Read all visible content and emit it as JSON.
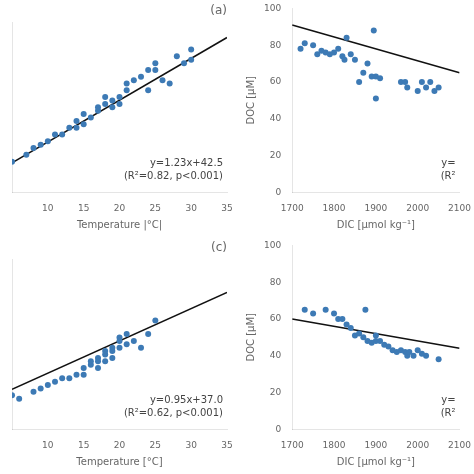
{
  "chart_data": [
    {
      "type": "scatter",
      "title": "(a)",
      "x_label": "Temperature |°C|",
      "xlim": [
        5,
        35
      ],
      "ylim": [
        40,
        90
      ],
      "xticks": [
        10,
        15,
        20,
        25,
        30,
        35
      ],
      "tick_labels": "x",
      "grid": false,
      "series": [
        {
          "type": "scatter",
          "color": "#3d7ab5",
          "x": [
            5,
            7,
            8,
            9,
            10,
            11,
            12,
            13,
            14,
            14,
            15,
            15,
            16,
            17,
            17,
            18,
            18,
            19,
            19,
            20,
            20,
            21,
            21,
            22,
            23,
            24,
            24,
            25,
            25,
            26,
            27,
            28,
            29,
            30,
            30
          ],
          "values": [
            49,
            51,
            53,
            54,
            55,
            57,
            57,
            59,
            59,
            61,
            60,
            63,
            62,
            64,
            65,
            66,
            68,
            65,
            67,
            68,
            66,
            70,
            72,
            73,
            74,
            70,
            76,
            78,
            76,
            73,
            72,
            80,
            78,
            82,
            79
          ]
        },
        {
          "type": "line",
          "color": "#111111",
          "x": [
            5,
            35
          ],
          "values": [
            48.65,
            85.55
          ]
        }
      ],
      "annotations": [
        "y=1.23x+42.5",
        "(R²=0.82, p<0.001)"
      ]
    },
    {
      "type": "scatter",
      "x_label": "DIC [μmol kg⁻¹]",
      "y_label": "DOC [μM]",
      "xlim": [
        1700,
        2100
      ],
      "ylim": [
        0,
        100
      ],
      "xticks": [
        1700,
        1800,
        1900,
        2000,
        2100
      ],
      "yticks": [
        0,
        20,
        40,
        60,
        80,
        100
      ],
      "grid": false,
      "series": [
        {
          "type": "scatter",
          "color": "#3d7ab5",
          "x": [
            1720,
            1730,
            1750,
            1760,
            1770,
            1780,
            1790,
            1800,
            1810,
            1820,
            1825,
            1830,
            1840,
            1850,
            1860,
            1870,
            1880,
            1890,
            1895,
            1900,
            1900,
            1910,
            1960,
            1970,
            1975,
            2000,
            2010,
            2020,
            2030,
            2040,
            2050
          ],
          "values": [
            78,
            81,
            80,
            75,
            77,
            76,
            75,
            76,
            78,
            74,
            72,
            84,
            75,
            72,
            60,
            65,
            70,
            63,
            88,
            63,
            51,
            62,
            60,
            60,
            57,
            55,
            60,
            57,
            60,
            55,
            57
          ]
        },
        {
          "type": "line",
          "color": "#111111",
          "x": [
            1700,
            2100
          ],
          "values": [
            91.0,
            65.0
          ]
        }
      ],
      "annotations": [
        "y=",
        "(R²"
      ]
    },
    {
      "type": "scatter",
      "title": "(c)",
      "x_label": "Temperature [°C]",
      "xlim": [
        5,
        35
      ],
      "ylim": [
        30,
        80
      ],
      "xticks": [
        10,
        15,
        20,
        25,
        30,
        35
      ],
      "tick_labels": "x",
      "grid": false,
      "series": [
        {
          "type": "scatter",
          "color": "#3d7ab5",
          "x": [
            5,
            6,
            8,
            9,
            10,
            11,
            12,
            13,
            14,
            15,
            15,
            16,
            16,
            17,
            17,
            17,
            18,
            18,
            18,
            19,
            19,
            19,
            20,
            20,
            20,
            21,
            21,
            22,
            23,
            24,
            25
          ],
          "values": [
            40,
            39,
            41,
            42,
            43,
            44,
            45,
            45,
            46,
            46,
            48,
            49,
            50,
            48,
            50,
            51,
            50,
            52,
            53,
            51,
            53,
            54,
            54,
            56,
            57,
            55,
            58,
            56,
            54,
            58,
            62
          ]
        },
        {
          "type": "line",
          "color": "#111111",
          "x": [
            5,
            35
          ],
          "values": [
            41.75,
            70.25
          ]
        }
      ],
      "annotations": [
        "y=0.95x+37.0",
        "(R²=0.62, p<0.001)"
      ]
    },
    {
      "type": "scatter",
      "x_label": "DIC [μmol kg⁻¹]",
      "y_label": "DOC [μM]",
      "xlim": [
        1700,
        2100
      ],
      "ylim": [
        0,
        100
      ],
      "xticks": [
        1700,
        1800,
        1900,
        2000,
        2100
      ],
      "yticks": [
        0,
        20,
        40,
        60,
        80,
        100
      ],
      "grid": false,
      "series": [
        {
          "type": "scatter",
          "color": "#3d7ab5",
          "x": [
            1730,
            1750,
            1780,
            1800,
            1810,
            1820,
            1830,
            1840,
            1850,
            1860,
            1870,
            1875,
            1880,
            1890,
            1900,
            1900,
            1910,
            1920,
            1930,
            1940,
            1950,
            1960,
            1970,
            1975,
            1980,
            1990,
            2000,
            2010,
            2020,
            2050
          ],
          "values": [
            65,
            63,
            65,
            63,
            60,
            60,
            57,
            55,
            51,
            52,
            50,
            65,
            48,
            47,
            51,
            48,
            48,
            46,
            45,
            43,
            42,
            43,
            42,
            40,
            42,
            40,
            43,
            41,
            40,
            38
          ]
        },
        {
          "type": "line",
          "color": "#111111",
          "x": [
            1700,
            2100
          ],
          "values": [
            60.0,
            44.0
          ]
        }
      ],
      "annotations": [
        "y=",
        "(R²"
      ]
    }
  ]
}
